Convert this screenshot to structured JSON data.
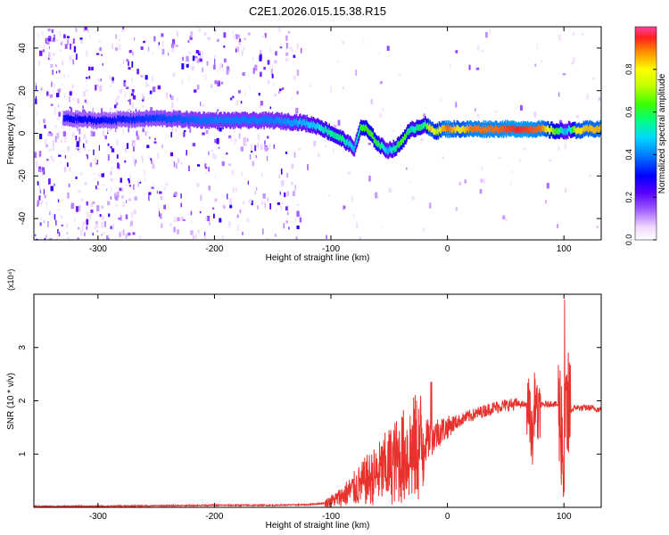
{
  "title": "C2E1.2026.015.15.38.R15",
  "colors": {
    "line": "#e8322e",
    "axis": "#000000",
    "cmap_low": "#ffffff",
    "cmap_purple": "#7a00ff"
  },
  "chart_data": [
    {
      "type": "heatmap",
      "title": "C2E1.2026.015.15.38.R15",
      "xlabel": "Height of straight line (km)",
      "ylabel": "Frequency (Hz)",
      "xlim": [
        -355,
        132
      ],
      "ylim": [
        -50,
        50
      ],
      "xticks": [
        -300,
        -200,
        -100,
        0,
        100
      ],
      "yticks": [
        -40,
        -20,
        0,
        20,
        40
      ],
      "colorbar": {
        "label": "Normalized spectral amplitude",
        "range": [
          0.0,
          1.0
        ],
        "ticks": [
          0.0,
          0.2,
          0.4,
          0.6,
          0.8
        ],
        "colormap": "rainbow"
      },
      "ridge": {
        "x": [
          -330,
          -300,
          -250,
          -200,
          -150,
          -125,
          -110,
          -100,
          -90,
          -80,
          -75,
          -70,
          -60,
          -52,
          -45,
          -40,
          -35,
          -30,
          -25,
          -20,
          -15,
          -10,
          -5,
          0,
          10,
          20,
          40,
          60,
          80,
          95,
          100,
          105,
          110,
          120,
          132
        ],
        "frequency": [
          7,
          6,
          7,
          6,
          6,
          5,
          3,
          0,
          -3,
          -7,
          3,
          2,
          -5,
          -8,
          -7,
          -4,
          0,
          2,
          3,
          4,
          2,
          1,
          2,
          2,
          2,
          2,
          2,
          2,
          2,
          1,
          1,
          2,
          1,
          2,
          2
        ],
        "amplitude": [
          0.3,
          0.3,
          0.35,
          0.4,
          0.4,
          0.45,
          0.5,
          0.55,
          0.55,
          0.45,
          0.6,
          0.65,
          0.6,
          0.45,
          0.55,
          0.65,
          0.6,
          0.5,
          0.6,
          0.55,
          0.85,
          0.7,
          0.85,
          0.9,
          0.8,
          0.9,
          0.9,
          0.95,
          0.9,
          0.6,
          0.45,
          0.5,
          0.8,
          0.85,
          0.85
        ]
      }
    },
    {
      "type": "line",
      "xlabel": "Height of straight line (km)",
      "ylabel": "SNR (10 * v/v)",
      "y_multiplier": "(x10⁴)",
      "xlim": [
        -355,
        132
      ],
      "ylim": [
        0,
        4
      ],
      "xticks": [
        -300,
        -200,
        -100,
        0,
        100
      ],
      "yticks": [
        1,
        2,
        3
      ],
      "series": [
        {
          "x": [
            -355,
            -300,
            -250,
            -200,
            -150,
            -120,
            -105,
            -100,
            -95,
            -90,
            -85,
            -80,
            -75,
            -70,
            -65,
            -60,
            -55,
            -50,
            -45,
            -40,
            -35,
            -30,
            -25,
            -20,
            -15,
            -10,
            -5,
            0,
            5,
            10,
            15,
            20,
            25,
            30,
            35,
            40,
            45,
            50,
            55,
            60,
            65,
            70,
            73,
            75,
            78,
            80,
            85,
            90,
            95,
            98,
            100,
            102,
            105,
            110,
            115,
            120,
            125,
            132
          ],
          "y": [
            0.02,
            0.02,
            0.03,
            0.04,
            0.04,
            0.05,
            0.08,
            0.12,
            0.16,
            0.22,
            0.28,
            0.35,
            0.42,
            0.5,
            0.55,
            0.62,
            0.7,
            0.78,
            0.85,
            0.92,
            1.0,
            1.07,
            1.13,
            1.22,
            1.3,
            1.38,
            1.45,
            1.5,
            1.57,
            1.62,
            1.68,
            1.72,
            1.76,
            1.8,
            1.84,
            1.87,
            1.9,
            1.92,
            1.93,
            1.94,
            1.93,
            1.9,
            1.2,
            2.1,
            1.6,
            1.92,
            1.93,
            1.95,
            1.92,
            1.5,
            0.6,
            1.7,
            1.8,
            1.88,
            1.86,
            1.87,
            1.86,
            1.83
          ]
        }
      ]
    }
  ]
}
